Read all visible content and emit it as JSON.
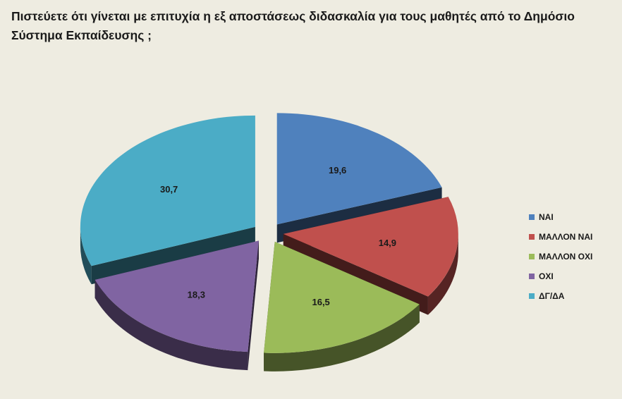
{
  "chart_data": {
    "type": "pie",
    "title": "Πιστεύετε ότι γίνεται με επιτυχία η εξ αποστάσεως διδασκαλία για τους μαθητές από το Δημόσιο Σύστημα Εκπαίδευσης ;",
    "categories": [
      "ΝΑΙ",
      "ΜΑΛΛΟΝ ΝΑΙ",
      "ΜΑΛΛΟΝ ΟΧΙ",
      "ΟΧΙ",
      "ΔΓ/ΔΑ"
    ],
    "values": [
      19.6,
      14.9,
      16.5,
      18.3,
      30.7
    ],
    "value_labels": [
      "19,6",
      "14,9",
      "16,5",
      "18,3",
      "30,7"
    ],
    "colors": [
      "#4f81bd",
      "#c0504d",
      "#9bbb59",
      "#8064a2",
      "#4bacc6"
    ],
    "legend_position": "right",
    "exploded": true,
    "style": "3d"
  }
}
